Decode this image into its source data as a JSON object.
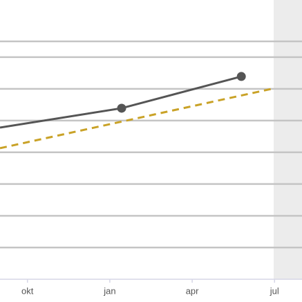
{
  "chart_data": {
    "type": "line",
    "xlim": [
      -1,
      10
    ],
    "xticks": [
      {
        "value": 0,
        "label": "okt"
      },
      {
        "value": 3,
        "label": "jan"
      },
      {
        "value": 6,
        "label": "apr"
      },
      {
        "value": 9,
        "label": "jul"
      }
    ],
    "ylim": [
      0,
      8.8
    ],
    "yticks": [
      1,
      2,
      3,
      4,
      5,
      6,
      7
    ],
    "grid": true,
    "series": [
      {
        "color": "#555555",
        "dash": false,
        "markers": true,
        "x": [
          -1,
          3.43,
          7.79
        ],
        "values": [
          4.78,
          5.39,
          6.39
        ]
      },
      {
        "color": "#c9a227",
        "dash": true,
        "markers": false,
        "x": [
          -1,
          9
        ],
        "values": [
          4.13,
          6.02
        ]
      }
    ]
  }
}
